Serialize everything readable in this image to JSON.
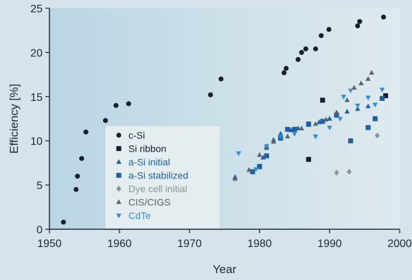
{
  "chart_data": {
    "type": "scatter",
    "xlabel": "Year",
    "ylabel": "Efficiency [%]",
    "xlim": [
      1950,
      2000
    ],
    "ylim": [
      0,
      25
    ],
    "xticks": [
      1950,
      1960,
      1970,
      1980,
      1990,
      2000
    ],
    "yticks": [
      0,
      5,
      10,
      15,
      20,
      25
    ],
    "grid": false,
    "legend": "center-left",
    "series": [
      {
        "name": "c-Si",
        "marker": "circle",
        "color": "#15202c",
        "points": [
          [
            1952,
            0.8
          ],
          [
            1953.8,
            4.5
          ],
          [
            1954,
            6
          ],
          [
            1954.6,
            8
          ],
          [
            1955.2,
            11
          ],
          [
            1958,
            12.3
          ],
          [
            1959.5,
            14
          ],
          [
            1961.3,
            14.2
          ],
          [
            1973,
            15.2
          ],
          [
            1974.5,
            17
          ],
          [
            1983.5,
            17.7
          ],
          [
            1983.8,
            18.2
          ],
          [
            1985.5,
            19.2
          ],
          [
            1986,
            20
          ],
          [
            1986.6,
            20.4
          ],
          [
            1988,
            20.4
          ],
          [
            1988.8,
            21.9
          ],
          [
            1989.9,
            22.6
          ],
          [
            1994,
            23
          ],
          [
            1994.3,
            23.5
          ],
          [
            1997.7,
            24
          ]
        ]
      },
      {
        "name": "Si ribbon",
        "marker": "square",
        "color": "#15202c",
        "points": [
          [
            1987,
            7.9
          ],
          [
            1989,
            14.6
          ],
          [
            1998,
            15.1
          ]
        ]
      },
      {
        "name": "a-Si initial",
        "marker": "triangle",
        "color": "#1f5fa3",
        "points": [
          [
            1976.5,
            5.9
          ],
          [
            1979,
            6.5
          ],
          [
            1980,
            7
          ],
          [
            1980.5,
            8.1
          ],
          [
            1981,
            9.2
          ],
          [
            1982,
            10.1
          ],
          [
            1983,
            10.8
          ],
          [
            1984.5,
            11.2
          ],
          [
            1985.5,
            11.4
          ],
          [
            1987,
            11.8
          ],
          [
            1988.5,
            12.1
          ],
          [
            1990,
            12.5
          ],
          [
            1991,
            12.9
          ],
          [
            1992.5,
            13.3
          ],
          [
            1994,
            13.6
          ],
          [
            1995.5,
            13.9
          ]
        ]
      },
      {
        "name": "a-Si stabilized",
        "marker": "square",
        "color": "#1f5fa3",
        "points": [
          [
            1979,
            6.5
          ],
          [
            1980,
            7.1
          ],
          [
            1981,
            8.3
          ],
          [
            1983,
            10.3
          ],
          [
            1984,
            11.3
          ],
          [
            1985,
            11.3
          ],
          [
            1987,
            11.9
          ],
          [
            1989,
            12.2
          ],
          [
            1991,
            12.9
          ],
          [
            1993,
            10
          ],
          [
            1995.5,
            11.5
          ],
          [
            1996.5,
            12.5
          ],
          [
            1997.5,
            14.8
          ]
        ]
      },
      {
        "name": "Dye cell initial",
        "marker": "diamond",
        "color": "#8f9294",
        "points": [
          [
            1991,
            6.4
          ],
          [
            1992.8,
            6.5
          ],
          [
            1996.8,
            10.6
          ]
        ]
      },
      {
        "name": "CIS/CIGS",
        "marker": "triangle",
        "color": "#5f6266",
        "points": [
          [
            1976.5,
            5.7
          ],
          [
            1978.5,
            6.7
          ],
          [
            1980,
            8.4
          ],
          [
            1981,
            9.4
          ],
          [
            1982,
            9.9
          ],
          [
            1984,
            10.5
          ],
          [
            1986,
            11.4
          ],
          [
            1988,
            11.9
          ],
          [
            1989.5,
            12.4
          ],
          [
            1991,
            13.2
          ],
          [
            1992.5,
            14.6
          ],
          [
            1993.5,
            16
          ],
          [
            1994.5,
            16.5
          ],
          [
            1995.5,
            17
          ],
          [
            1996,
            17.7
          ]
        ]
      },
      {
        "name": "CdTe",
        "marker": "triangle-down",
        "color": "#2f8fd6",
        "points": [
          [
            1977,
            8.6
          ],
          [
            1979.5,
            6.8
          ],
          [
            1981,
            9.4
          ],
          [
            1983,
            10.5
          ],
          [
            1985,
            10.8
          ],
          [
            1988,
            10.5
          ],
          [
            1990,
            11.5
          ],
          [
            1991.5,
            12.5
          ],
          [
            1992,
            15
          ],
          [
            1993,
            15.7
          ],
          [
            1994,
            14
          ],
          [
            1995.5,
            14.9
          ],
          [
            1996.5,
            14.1
          ],
          [
            1997.5,
            15.8
          ]
        ]
      }
    ]
  }
}
